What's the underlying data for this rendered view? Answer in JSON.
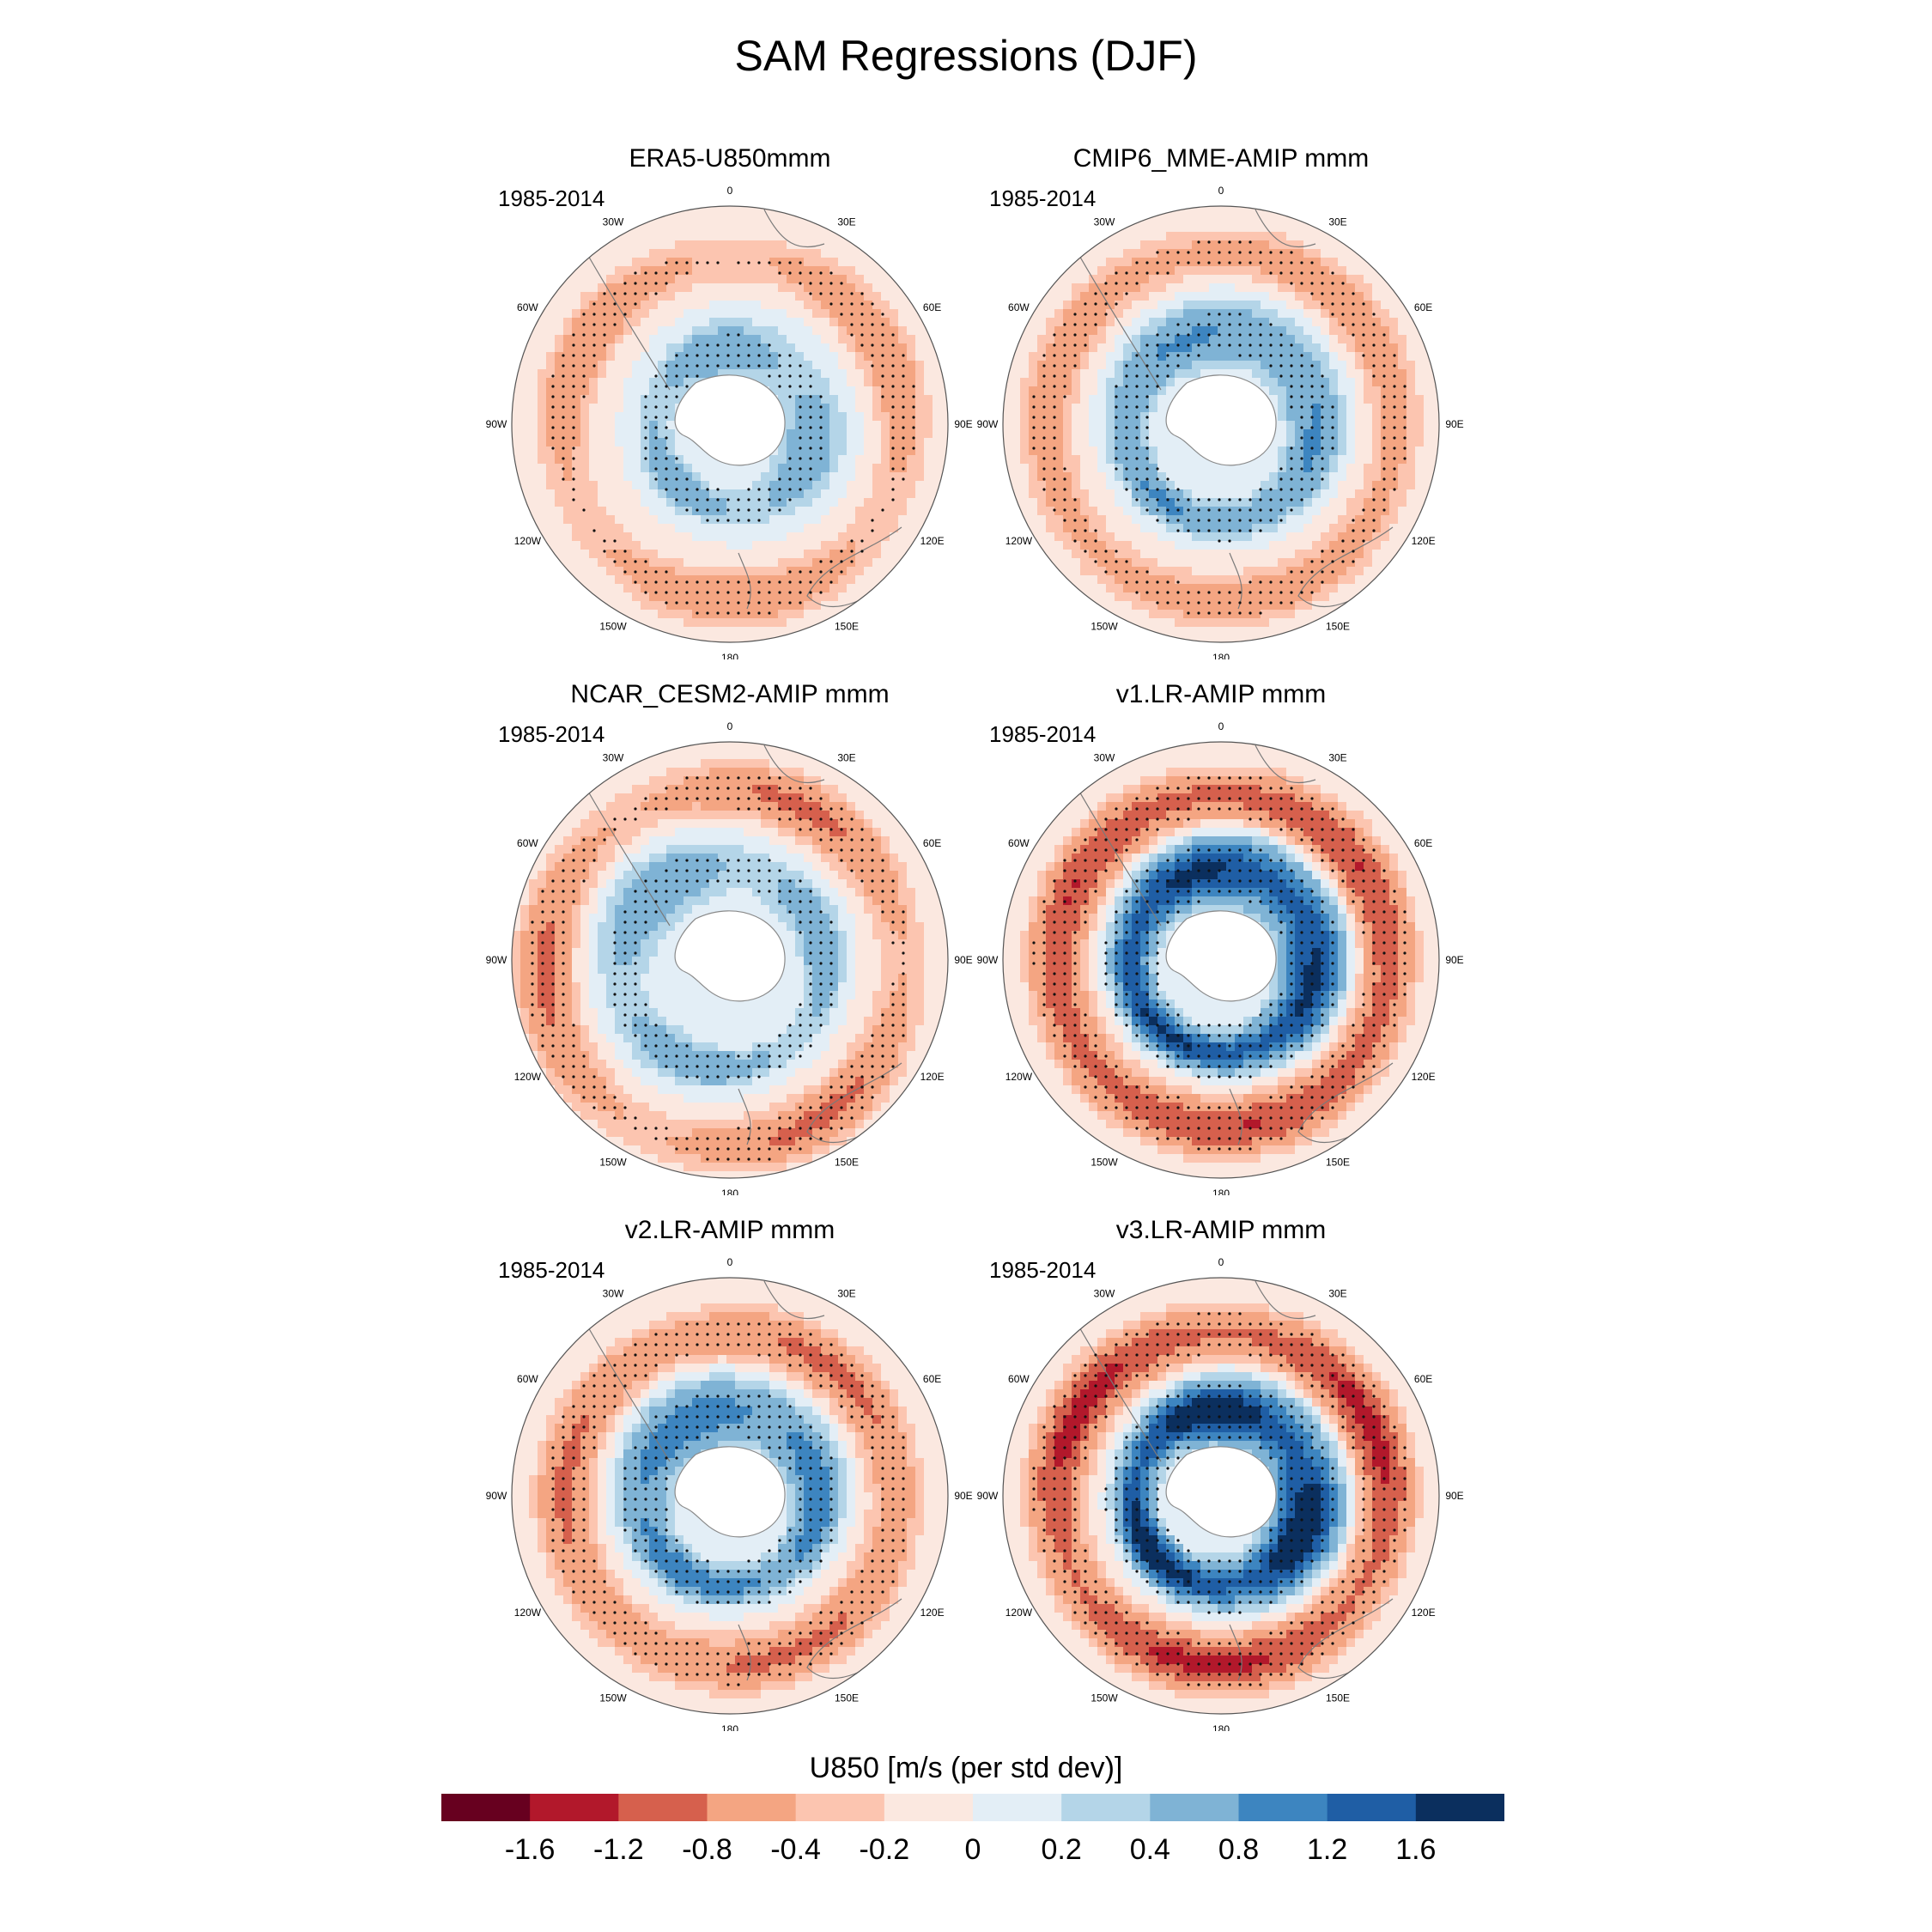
{
  "figure": {
    "title": "SAM Regressions (DJF)"
  },
  "panels": [
    {
      "title": "ERA5-U850mmm",
      "period": "1985-2014",
      "pattern": "era5"
    },
    {
      "title": "CMIP6_MME-AMIP  mmm",
      "period": "1985-2014",
      "pattern": "cmip6"
    },
    {
      "title": "NCAR_CESM2-AMIP  mmm",
      "period": "1985-2014",
      "pattern": "cesm2"
    },
    {
      "title": "v1.LR-AMIP  mmm",
      "period": "1985-2014",
      "pattern": "v1"
    },
    {
      "title": "v2.LR-AMIP  mmm",
      "period": "1985-2014",
      "pattern": "v2"
    },
    {
      "title": "v3.LR-AMIP  mmm",
      "period": "1985-2014",
      "pattern": "v3"
    }
  ],
  "longitude_labels": [
    "0",
    "30E",
    "60E",
    "90E",
    "120E",
    "150E",
    "180",
    "150W",
    "120W",
    "90W",
    "60W",
    "30W"
  ],
  "colorbar": {
    "title": "U850 [m/s (per std dev)]",
    "labels": [
      "-1.6",
      "-1.2",
      "-0.8",
      "-0.4",
      "-0.2",
      "0",
      "0.2",
      "0.4",
      "0.8",
      "1.2",
      "1.6"
    ],
    "colors": [
      "#67001f",
      "#b2182b",
      "#d6604d",
      "#f4a582",
      "#fcc5b0",
      "#fbe8e0",
      "#e3eef6",
      "#b4d5e8",
      "#7fb3d5",
      "#3d85c0",
      "#1f5ea5",
      "#0b2f5e"
    ]
  }
}
